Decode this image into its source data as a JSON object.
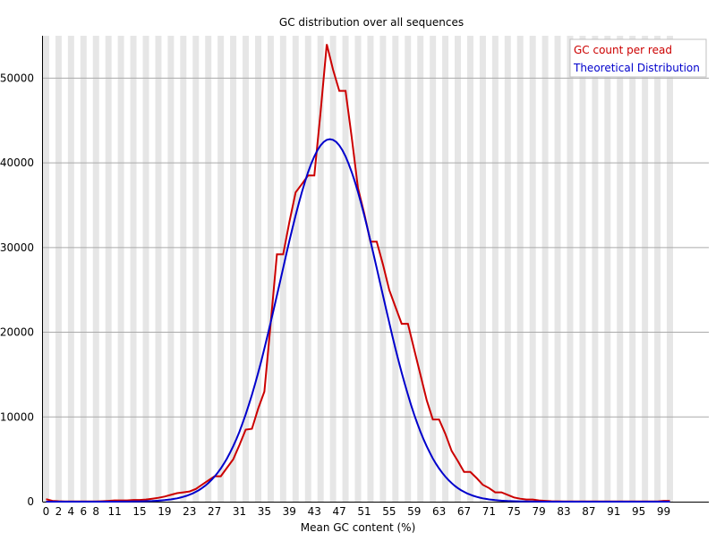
{
  "chart_data": {
    "type": "line",
    "title": "GC distribution over all sequences",
    "xlabel": "Mean GC content (%)",
    "ylabel": "",
    "xlim": [
      0,
      100
    ],
    "ylim": [
      0,
      55000
    ],
    "x_tick_labels": [
      "0",
      "2",
      "4",
      "6",
      "8",
      "11",
      "15",
      "19",
      "23",
      "27",
      "31",
      "35",
      "39",
      "43",
      "47",
      "51",
      "55",
      "59",
      "63",
      "67",
      "71",
      "75",
      "79",
      "83",
      "87",
      "91",
      "95",
      "99"
    ],
    "y_ticks": [
      0,
      10000,
      20000,
      30000,
      40000,
      50000
    ],
    "grid": true,
    "legend_position": "top-right",
    "series": [
      {
        "name": "GC count per read",
        "color": "#cc0000",
        "x": [
          0,
          1,
          2,
          3,
          4,
          5,
          6,
          7,
          8,
          9,
          10,
          11,
          12,
          13,
          14,
          15,
          16,
          17,
          18,
          19,
          20,
          21,
          22,
          23,
          24,
          25,
          26,
          27,
          28,
          29,
          30,
          31,
          32,
          33,
          34,
          35,
          36,
          37,
          38,
          39,
          40,
          41,
          42,
          43,
          44,
          45,
          46,
          47,
          48,
          49,
          50,
          51,
          52,
          53,
          54,
          55,
          56,
          57,
          58,
          59,
          60,
          61,
          62,
          63,
          64,
          65,
          66,
          67,
          68,
          69,
          70,
          71,
          72,
          73,
          74,
          75,
          76,
          77,
          78,
          79,
          80,
          81,
          82,
          83,
          84,
          85,
          86,
          87,
          88,
          89,
          90,
          91,
          92,
          93,
          94,
          95,
          96,
          97,
          98,
          99,
          100
        ],
        "values": [
          300,
          100,
          50,
          30,
          20,
          20,
          20,
          20,
          20,
          50,
          100,
          150,
          150,
          150,
          200,
          200,
          250,
          350,
          450,
          600,
          800,
          1000,
          1100,
          1200,
          1500,
          2000,
          2500,
          3000,
          3000,
          4000,
          5000,
          6700,
          8500,
          8600,
          11000,
          13000,
          21000,
          29200,
          29200,
          33000,
          36500,
          37500,
          38500,
          38500,
          46000,
          54000,
          51000,
          48500,
          48500,
          43000,
          37000,
          34000,
          30700,
          30700,
          28000,
          25000,
          23000,
          21000,
          21000,
          18000,
          15000,
          12000,
          9700,
          9700,
          8000,
          6000,
          4800,
          3500,
          3500,
          2800,
          2000,
          1600,
          1100,
          1100,
          800,
          500,
          350,
          250,
          250,
          150,
          100,
          50,
          40,
          30,
          20,
          20,
          20,
          20,
          20,
          20,
          20,
          20,
          20,
          20,
          20,
          20,
          20,
          20,
          20,
          100,
          100
        ]
      },
      {
        "name": "Theoretical Distribution",
        "color": "#0000cc",
        "mean": 45.5,
        "sd": 8.0,
        "peak": 42800
      }
    ]
  }
}
